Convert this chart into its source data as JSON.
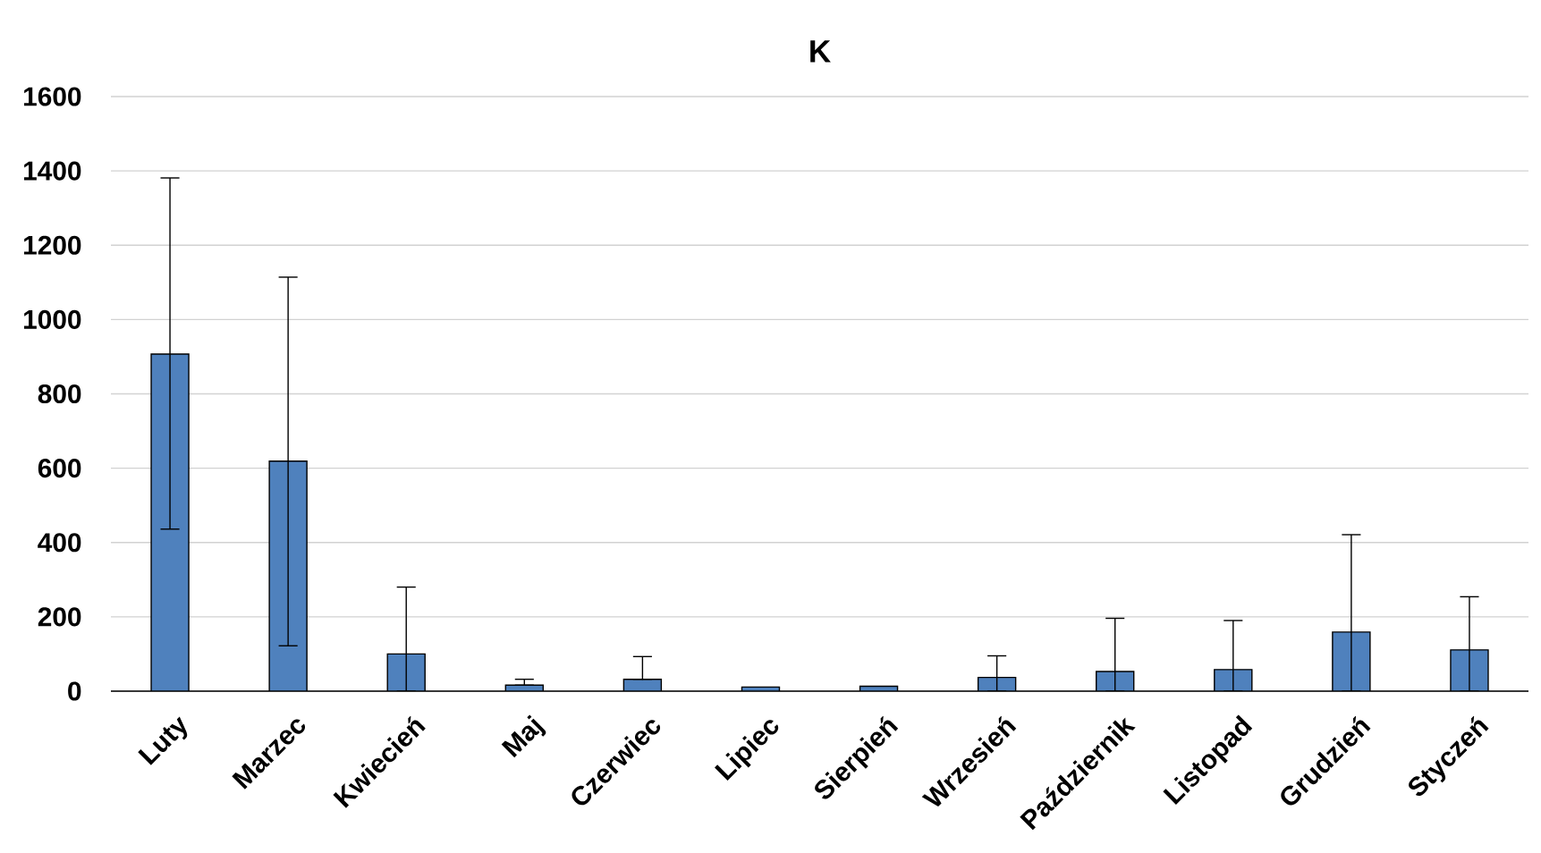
{
  "chart_data": {
    "type": "bar",
    "title": "K",
    "categories": [
      "Luty",
      "Marzec",
      "Kwiecień",
      "Maj",
      "Czerwiec",
      "Lipiec",
      "Sierpień",
      "Wrzesień",
      "Październik",
      "Listopad",
      "Grudzień",
      "Styczeń"
    ],
    "values": [
      907,
      619,
      100,
      16,
      32,
      11,
      13,
      37,
      53,
      58,
      159,
      111
    ],
    "errors": [
      [
        436,
        1381
      ],
      [
        122,
        1114
      ],
      [
        0,
        280
      ],
      [
        16,
        32
      ],
      [
        32,
        93
      ],
      null,
      null,
      [
        0,
        95
      ],
      [
        0,
        196
      ],
      [
        0,
        190
      ],
      [
        0,
        421
      ],
      [
        0,
        254
      ]
    ],
    "color": "#4f81bd",
    "ylim": [
      0,
      1600
    ],
    "yticks": [
      0,
      200,
      400,
      600,
      800,
      1000,
      1200,
      1400,
      1600
    ],
    "grid": "y"
  }
}
